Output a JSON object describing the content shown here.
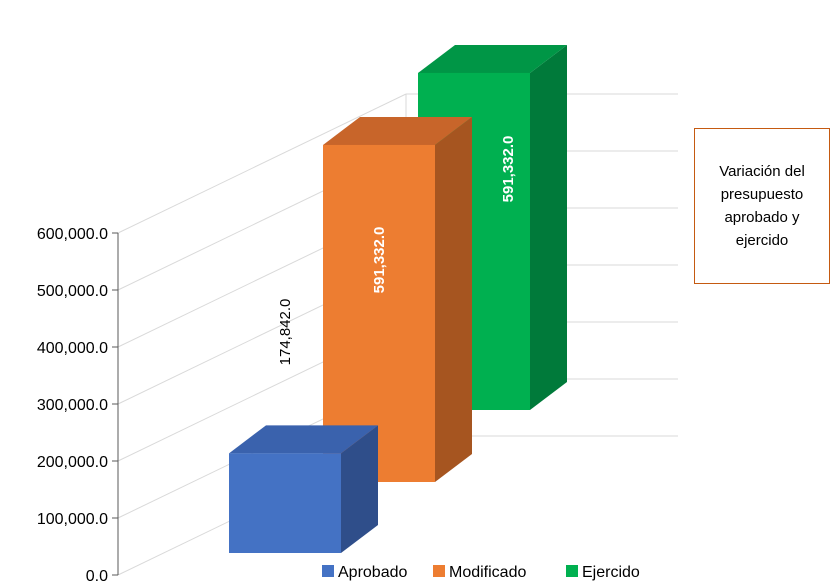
{
  "chart_data": {
    "type": "bar",
    "categories": [
      "Aprobado",
      "Modificado",
      "Ejercido"
    ],
    "values": [
      174842.0,
      591332.0,
      591332.0
    ],
    "value_labels": [
      "174,842.0",
      "591,332.0",
      "591,332.0"
    ],
    "colors": [
      "#4472C4",
      "#ED7D31",
      "#00B050"
    ],
    "side_colors": [
      "#2F4E8A",
      "#A65520",
      "#007A3A"
    ],
    "top_colors": [
      "#3A62AD",
      "#C8652A",
      "#009646"
    ],
    "y_ticks": [
      "0.0",
      "100,000.0",
      "200,000.0",
      "300,000.0",
      "400,000.0",
      "500,000.0",
      "600,000.0"
    ],
    "ylim": [
      0,
      600000
    ],
    "three_d": true,
    "legend": {
      "position": "bottom",
      "entries": [
        "Aprobado",
        "Modificado",
        "Ejercido"
      ]
    },
    "annotation": "Variación del presupuesto aprobado y ejercido"
  }
}
